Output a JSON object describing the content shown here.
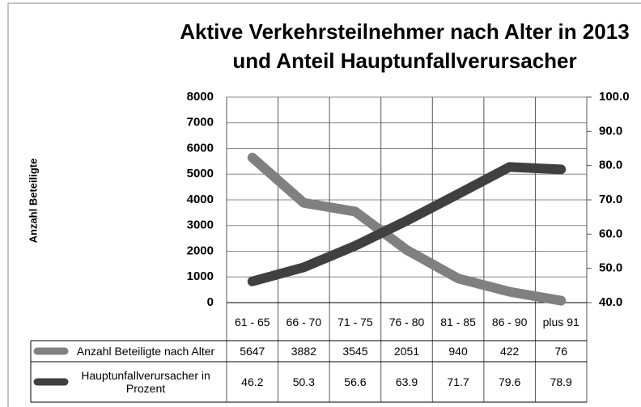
{
  "chart_data": {
    "type": "line",
    "title": [
      "Aktive Verkehrsteilnehmer nach Alter in 2013",
      "und Anteil Hauptunfallverursacher"
    ],
    "y_axis_label": "Anzahl Beteiligte",
    "categories": [
      "61 - 65",
      "66 - 70",
      "71 - 75",
      "76 - 80",
      "81 - 85",
      "86 - 90",
      "plus 91"
    ],
    "series": [
      {
        "name": "Anzahl Beteiligte nach Alter",
        "color": "#808080",
        "values": [
          5647,
          3882,
          3545,
          2051,
          940,
          422,
          76
        ]
      },
      {
        "name": "Hauptunfallverursacher in Prozent",
        "color": "#404040",
        "axis": "y2",
        "values": [
          46.2,
          50.3,
          56.6,
          63.9,
          71.7,
          79.6,
          78.9
        ]
      }
    ],
    "ylim": [
      0,
      8000
    ],
    "yticks": [
      0,
      1000,
      2000,
      3000,
      4000,
      5000,
      6000,
      7000,
      8000
    ],
    "y2lim": [
      40,
      100
    ],
    "y2ticks": [
      {
        "value": 40,
        "label": "40.0"
      },
      {
        "value": 50,
        "label": "50.0"
      },
      {
        "value": 60,
        "label": "60.0"
      },
      {
        "value": 70,
        "label": "70.0"
      },
      {
        "value": 80,
        "label": "80.0"
      },
      {
        "value": 90,
        "label": "90.0"
      },
      {
        "value": 100,
        "label": "100.0"
      }
    ],
    "grid": true,
    "legend": "data-table"
  }
}
